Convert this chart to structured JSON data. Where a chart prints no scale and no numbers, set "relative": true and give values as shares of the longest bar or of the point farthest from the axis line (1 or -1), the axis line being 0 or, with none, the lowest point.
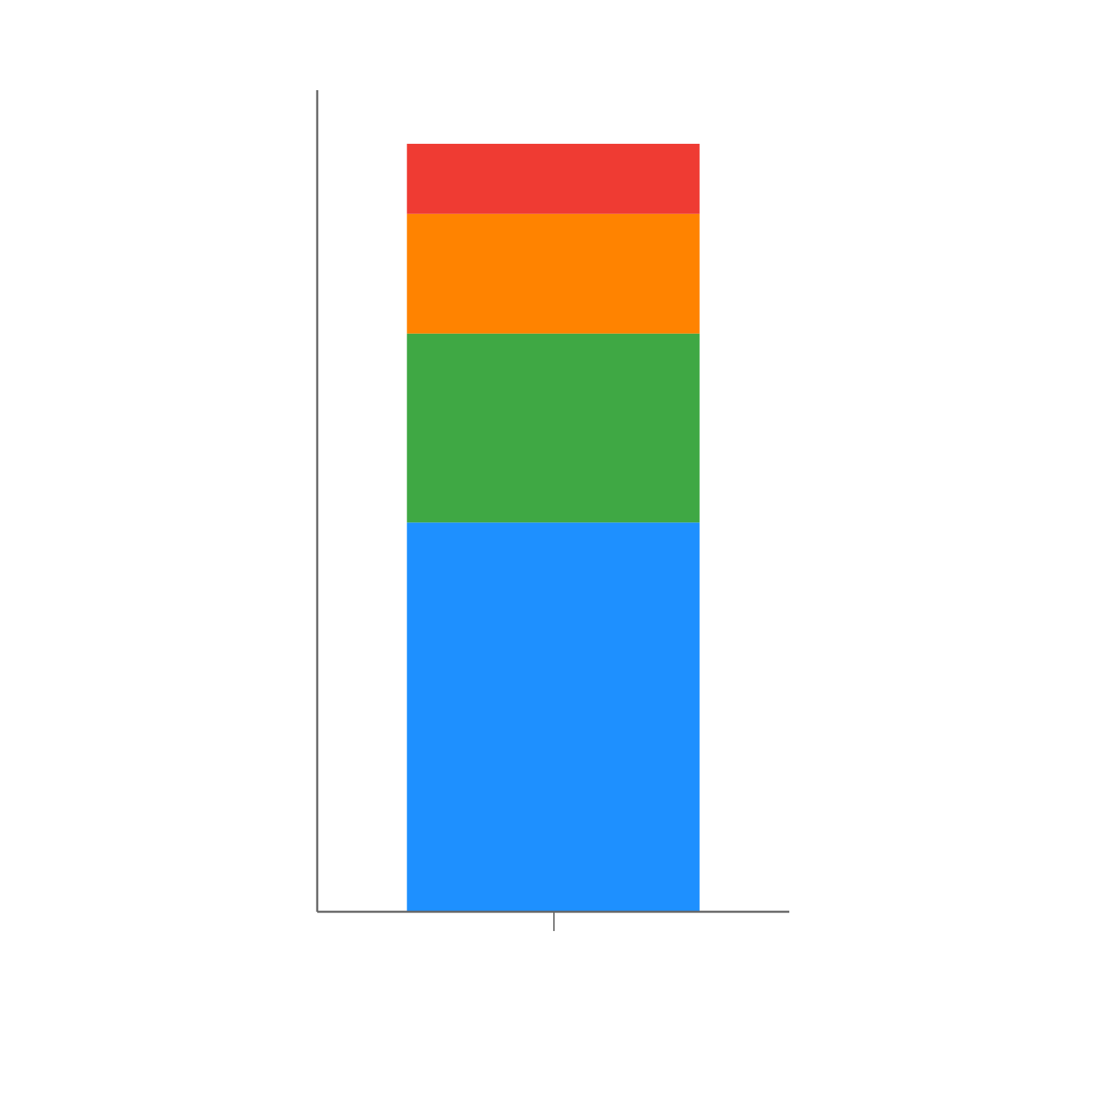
{
  "chart_data": {
    "type": "bar",
    "stacked": true,
    "relative": true,
    "categories": [
      null
    ],
    "series": [
      {
        "color": "#1e90ff",
        "values": [
          0.507
        ]
      },
      {
        "color": "#3fa844",
        "values": [
          0.246
        ]
      },
      {
        "color": "#ff8300",
        "values": [
          0.156
        ]
      },
      {
        "color": "#ef3b33",
        "values": [
          0.091
        ]
      }
    ],
    "grid": false
  }
}
